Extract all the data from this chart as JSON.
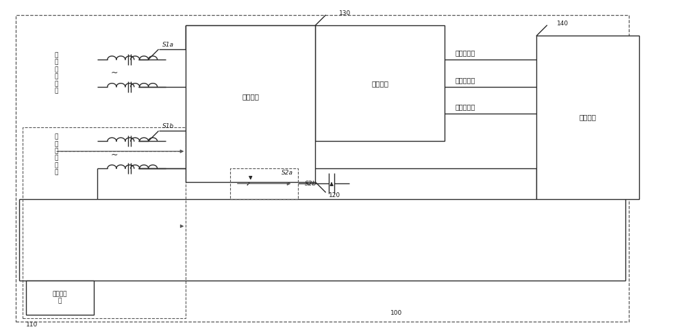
{
  "bg_color": "#ffffff",
  "lc": "#2a2a2a",
  "dc": "#555555",
  "tc": "#1a1a1a",
  "figsize": [
    10.0,
    4.91
  ],
  "dpi": 100,
  "labels": {
    "n100": "100",
    "n110": "110",
    "n120": "120",
    "n130": "130",
    "n140": "140",
    "bridge": "电桥模块",
    "switch_mod": "开关模块",
    "dut": "待测电路",
    "ctrl": "流程控制\n器",
    "src1": "第\n一\n测\n试\n电\n源",
    "src2": "第\n二\n测\n试\n电\n源",
    "s1a": "S1a",
    "s1b": "S1b",
    "s2a": "S2a",
    "s2b": "S2b",
    "port1": "第一测试端",
    "port2": "第二测试端",
    "port3": "第三测试端"
  }
}
